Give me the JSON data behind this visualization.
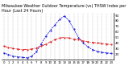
{
  "title": "Milwaukee Weather Outdoor Temperature (vs) THSW Index per Hour (Last 24 Hours)",
  "title_fontsize": 3.5,
  "background_color": "#ffffff",
  "grid_color": "#999999",
  "hours": [
    0,
    1,
    2,
    3,
    4,
    5,
    6,
    7,
    8,
    9,
    10,
    11,
    12,
    13,
    14,
    15,
    16,
    17,
    18,
    19,
    20,
    21,
    22,
    23
  ],
  "temp_color": "#dd0000",
  "thsw_color": "#0000dd",
  "temp_values": [
    34,
    32,
    30,
    29,
    28,
    28,
    29,
    31,
    34,
    38,
    42,
    46,
    49,
    50,
    49,
    47,
    46,
    44,
    42,
    41,
    40,
    39,
    38,
    37
  ],
  "thsw_values": [
    22,
    19,
    16,
    15,
    14,
    13,
    16,
    24,
    38,
    52,
    63,
    73,
    83,
    89,
    80,
    65,
    50,
    40,
    33,
    28,
    25,
    23,
    22,
    21
  ],
  "ylim": [
    10,
    95
  ],
  "yticks": [
    20,
    30,
    40,
    50,
    60,
    70,
    80,
    90
  ],
  "ytick_labels": [
    "20",
    "30",
    "40",
    "50",
    "60",
    "70",
    "80",
    "90"
  ],
  "tick_fontsize": 2.8,
  "line_width": 0.55,
  "marker_size": 1.0
}
